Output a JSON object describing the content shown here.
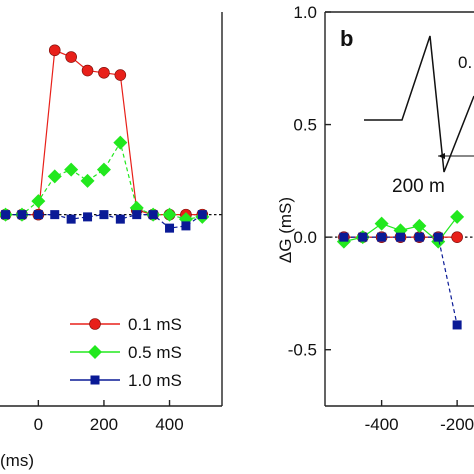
{
  "chart_data": [
    {
      "type": "line",
      "panel_label": "",
      "xlabel": "(ms)",
      "ylabel": "",
      "xlim": [
        -120,
        560
      ],
      "ylim": [
        -0.75,
        1.0
      ],
      "x_ticks": [
        "0",
        "200",
        "400"
      ],
      "x_tick_values": [
        0,
        200,
        400
      ],
      "series": [
        {
          "name": "0.1 mS",
          "color": "#e8201a",
          "marker": "circle",
          "x": [
            -100,
            -50,
            0,
            50,
            100,
            150,
            200,
            250,
            300,
            350,
            400,
            450,
            500
          ],
          "y": [
            0.1,
            0.1,
            0.1,
            0.83,
            0.8,
            0.74,
            0.73,
            0.72,
            0.12,
            0.1,
            0.1,
            0.1,
            0.1
          ]
        },
        {
          "name": "0.5 mS",
          "color": "#22e81e",
          "marker": "diamond",
          "x": [
            -100,
            -50,
            0,
            50,
            100,
            150,
            200,
            250,
            300,
            350,
            400,
            450,
            500
          ],
          "y": [
            0.1,
            0.1,
            0.16,
            0.27,
            0.3,
            0.25,
            0.3,
            0.42,
            0.13,
            0.1,
            0.1,
            0.08,
            0.09
          ]
        },
        {
          "name": "1.0 mS",
          "color": "#0a1a96",
          "marker": "square",
          "x": [
            -100,
            -50,
            0,
            50,
            100,
            150,
            200,
            250,
            300,
            350,
            400,
            450,
            500
          ],
          "y": [
            0.1,
            0.1,
            0.1,
            0.1,
            0.08,
            0.09,
            0.1,
            0.08,
            0.1,
            0.1,
            0.04,
            0.05,
            0.1
          ]
        }
      ],
      "reference_line": {
        "y": 0.1,
        "style": "dotted"
      },
      "legend": {
        "placement": "bottom-right"
      }
    },
    {
      "type": "line",
      "panel_label": "b",
      "xlabel": "",
      "ylabel": "ΔG (mS)",
      "xlim": [
        -550,
        -150
      ],
      "ylim": [
        -0.75,
        1.0
      ],
      "x_ticks": [
        "-400",
        "-200"
      ],
      "x_tick_values": [
        -400,
        -200
      ],
      "y_ticks": [
        "-0.5",
        "0.0",
        "0.5",
        "1.0"
      ],
      "y_tick_values": [
        -0.5,
        0.0,
        0.5,
        1.0
      ],
      "series": [
        {
          "color": "#e8201a",
          "marker": "circle",
          "x": [
            -500,
            -450,
            -400,
            -350,
            -300,
            -250,
            -200
          ],
          "y": [
            0.0,
            0.0,
            0.0,
            0.0,
            0.0,
            0.0,
            0.0
          ]
        },
        {
          "color": "#22e81e",
          "marker": "diamond",
          "x": [
            -500,
            -450,
            -400,
            -350,
            -300,
            -250,
            -200
          ],
          "y": [
            -0.02,
            0.0,
            0.06,
            0.03,
            0.05,
            -0.02,
            0.09
          ]
        },
        {
          "color": "#0a1a96",
          "marker": "square",
          "x": [
            -500,
            -450,
            -400,
            -350,
            -300,
            -250,
            -200
          ],
          "y": [
            0.0,
            0.0,
            0.0,
            0.0,
            0.0,
            0.0,
            -0.39
          ]
        }
      ],
      "reference_line": {
        "y": 0.0,
        "style": "dotted"
      },
      "inset": {
        "labels": [
          "0.",
          "200 m"
        ]
      }
    }
  ]
}
